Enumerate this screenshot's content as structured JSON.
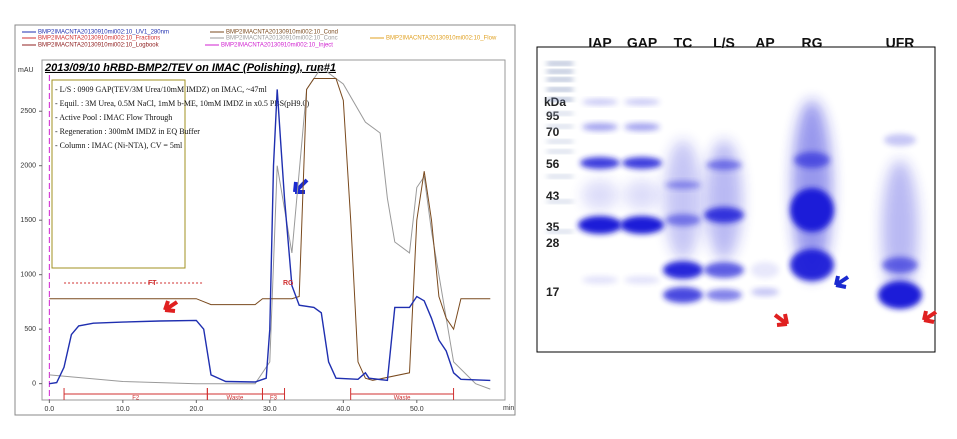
{
  "chart_data": {
    "type": "line",
    "title": "2013/09/10  hRBD-BMP2/TEV on IMAC (Polishing), run#1",
    "y_unit": "mAU",
    "x_unit": "min",
    "xlim": [
      -1,
      62
    ],
    "ylim": [
      -150,
      2970
    ],
    "xticks": [
      {
        "value": 0,
        "label": "0.0"
      },
      {
        "value": 10,
        "label": "10.0"
      },
      {
        "value": 20,
        "label": "20.0"
      },
      {
        "value": 30,
        "label": "30.0"
      },
      {
        "value": 40,
        "label": "40.0"
      },
      {
        "value": 50,
        "label": "50.0"
      }
    ],
    "yticks": [
      0,
      500,
      1000,
      1500,
      2000,
      2500
    ],
    "series": [
      {
        "name": "BMP2IMACNTA20130910mi002:10_UV1_280nm",
        "color": "#1f2fb0",
        "x": [
          0,
          1,
          2,
          3,
          4,
          6,
          10,
          15,
          20,
          21,
          22,
          24,
          28,
          29.5,
          30,
          30.5,
          31,
          31.5,
          32,
          33,
          34,
          36,
          37,
          38,
          39,
          42,
          43,
          43.5,
          46,
          47,
          49,
          50,
          51,
          52,
          53,
          54,
          55,
          56,
          60
        ],
        "values": [
          0,
          10,
          150,
          450,
          530,
          555,
          565,
          575,
          580,
          500,
          80,
          20,
          15,
          50,
          500,
          2000,
          2700,
          2200,
          1700,
          900,
          720,
          700,
          650,
          200,
          50,
          40,
          100,
          50,
          30,
          700,
          700,
          800,
          760,
          600,
          400,
          300,
          100,
          40,
          30
        ]
      },
      {
        "name": "BMP2IMACNTA20130910mi002:10_Cond",
        "color": "#7a4a1e",
        "x": [
          0,
          20,
          22,
          28,
          29,
          33,
          34,
          35,
          36,
          39,
          40,
          41,
          42,
          43,
          44,
          49,
          50,
          51,
          52,
          53,
          54,
          55,
          56,
          60
        ],
        "values": [
          780,
          780,
          725,
          725,
          780,
          780,
          800,
          2700,
          2800,
          2800,
          2600,
          1500,
          200,
          50,
          30,
          100,
          1500,
          1950,
          1500,
          800,
          600,
          500,
          780,
          780
        ]
      },
      {
        "name": "BMP2IMACNTA20130910mi002:10_Conc",
        "color": "#9a9a9a",
        "x": [
          0,
          10,
          20,
          28,
          30,
          31,
          33,
          35,
          37,
          40,
          43,
          45,
          46,
          47,
          49,
          50,
          51,
          52,
          55,
          58,
          60
        ],
        "values": [
          80,
          20,
          0,
          0,
          200,
          2000,
          1200,
          2700,
          2900,
          2750,
          2400,
          2300,
          1700,
          1300,
          1200,
          1800,
          1900,
          1400,
          200,
          0,
          -50
        ]
      }
    ],
    "legend_extra": [
      {
        "name": "BMP2IMACNTA20130910mi002:10_Flow",
        "color": "#e0a020"
      },
      {
        "name": "BMP2IMACNTA20130910mi002:10_Fractions",
        "color": "#d03030"
      },
      {
        "name": "BMP2IMACNTA20130910mi002:10_Inject",
        "color": "#d020d0"
      },
      {
        "name": "BMP2IMACNTA20130910mi002:10_Logbook",
        "color": "#902020"
      }
    ],
    "notes": [
      "- L/S : 0909 GAP(TEV/3M Urea/10mM IMDZ) on IMAC, ~47ml",
      "- Equil. : 3M Urea, 0.5M NaCl, 1mM b-ME, 10mM IMDZ in x0.5 PBS(pH9.0)",
      "- Active Pool : IMAC Flow Through",
      "- Regeneration : 300mM IMDZ in EQ Buffer",
      "- Column : IMAC (Ni-NTA), CV = 5ml"
    ],
    "annotations": [
      {
        "text": "FT",
        "x": 14
      },
      {
        "text": "RG",
        "x": 32.5
      }
    ],
    "inject_at": 0,
    "fractions": [
      {
        "label": "F2",
        "start": 2,
        "end": 21.5
      },
      {
        "label": "Waste",
        "start": 21.5,
        "end": 29
      },
      {
        "label": "F3",
        "start": 29,
        "end": 32
      },
      {
        "label": "Waste",
        "start": 41,
        "end": 55
      }
    ]
  },
  "gel": {
    "lanes": [
      "IAP",
      "GAP",
      "TC",
      "L/S",
      "AP",
      "RG",
      "UFR"
    ],
    "marker_unit": "kDa",
    "markers": [
      "95",
      "70",
      "56",
      "43",
      "35",
      "28",
      "17"
    ]
  }
}
